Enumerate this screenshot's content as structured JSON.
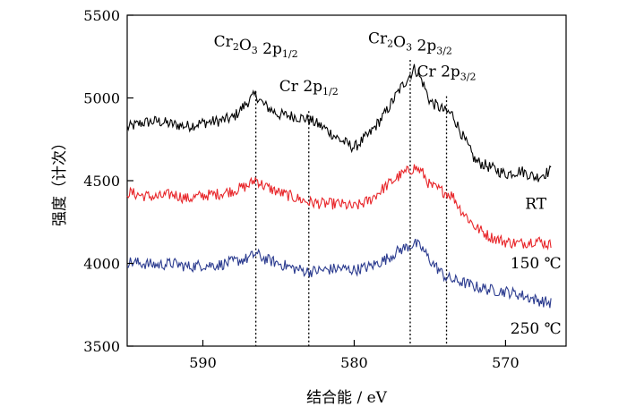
{
  "chart_data": {
    "type": "line",
    "xlabel": "结合能 / eV",
    "ylabel": "强度（计次）",
    "xlim": [
      595,
      566
    ],
    "ylim": [
      3500,
      5500
    ],
    "x_reversed": true,
    "xticks": [
      590,
      580,
      570
    ],
    "yticks": [
      3500,
      4000,
      4500,
      5000,
      5500
    ],
    "grid": false,
    "legend": "none",
    "series": [
      {
        "name": "RT",
        "color": "#000000",
        "points": [
          [
            595.0,
            4820
          ],
          [
            594.0,
            4850
          ],
          [
            593.0,
            4860
          ],
          [
            592.0,
            4840
          ],
          [
            591.0,
            4830
          ],
          [
            590.0,
            4850
          ],
          [
            589.0,
            4860
          ],
          [
            588.0,
            4880
          ],
          [
            587.0,
            4980
          ],
          [
            586.5,
            5020
          ],
          [
            586.0,
            4960
          ],
          [
            585.0,
            4900
          ],
          [
            584.0,
            4890
          ],
          [
            583.0,
            4870
          ],
          [
            582.0,
            4820
          ],
          [
            581.0,
            4750
          ],
          [
            580.0,
            4700
          ],
          [
            579.0,
            4780
          ],
          [
            578.0,
            4900
          ],
          [
            577.0,
            5050
          ],
          [
            576.0,
            5180
          ],
          [
            575.5,
            5100
          ],
          [
            575.0,
            4980
          ],
          [
            574.0,
            4920
          ],
          [
            573.5,
            4900
          ],
          [
            573.0,
            4800
          ],
          [
            572.0,
            4620
          ],
          [
            571.0,
            4580
          ],
          [
            570.0,
            4540
          ],
          [
            569.0,
            4560
          ],
          [
            568.0,
            4520
          ],
          [
            567.0,
            4560
          ]
        ]
      },
      {
        "name": "150 ℃",
        "color": "#e8262a",
        "points": [
          [
            595.0,
            4430
          ],
          [
            594.0,
            4410
          ],
          [
            593.0,
            4400
          ],
          [
            592.0,
            4420
          ],
          [
            591.0,
            4390
          ],
          [
            590.0,
            4410
          ],
          [
            589.0,
            4420
          ],
          [
            588.0,
            4440
          ],
          [
            587.0,
            4470
          ],
          [
            586.5,
            4510
          ],
          [
            586.0,
            4470
          ],
          [
            585.0,
            4430
          ],
          [
            584.0,
            4400
          ],
          [
            583.0,
            4370
          ],
          [
            582.0,
            4360
          ],
          [
            581.0,
            4360
          ],
          [
            580.0,
            4340
          ],
          [
            579.0,
            4380
          ],
          [
            578.0,
            4460
          ],
          [
            577.0,
            4530
          ],
          [
            576.0,
            4580
          ],
          [
            575.5,
            4550
          ],
          [
            575.0,
            4470
          ],
          [
            574.0,
            4430
          ],
          [
            573.5,
            4410
          ],
          [
            573.0,
            4330
          ],
          [
            572.0,
            4220
          ],
          [
            571.0,
            4160
          ],
          [
            570.0,
            4130
          ],
          [
            569.0,
            4120
          ],
          [
            568.0,
            4140
          ],
          [
            567.0,
            4110
          ]
        ]
      },
      {
        "name": "250 ℃",
        "color": "#2b3b8f",
        "points": [
          [
            595.0,
            4010
          ],
          [
            594.0,
            4000
          ],
          [
            593.0,
            3990
          ],
          [
            592.0,
            4000
          ],
          [
            591.0,
            3980
          ],
          [
            590.0,
            3990
          ],
          [
            589.0,
            3990
          ],
          [
            588.0,
            4010
          ],
          [
            587.0,
            4030
          ],
          [
            586.5,
            4060
          ],
          [
            586.0,
            4030
          ],
          [
            585.0,
            4000
          ],
          [
            584.0,
            3970
          ],
          [
            583.0,
            3950
          ],
          [
            582.0,
            3960
          ],
          [
            581.0,
            3970
          ],
          [
            580.0,
            3960
          ],
          [
            579.0,
            3980
          ],
          [
            578.0,
            4020
          ],
          [
            577.0,
            4080
          ],
          [
            576.0,
            4120
          ],
          [
            575.5,
            4090
          ],
          [
            575.0,
            4020
          ],
          [
            574.0,
            3920
          ],
          [
            573.5,
            3900
          ],
          [
            573.0,
            3890
          ],
          [
            572.0,
            3860
          ],
          [
            571.0,
            3840
          ],
          [
            570.0,
            3830
          ],
          [
            569.0,
            3810
          ],
          [
            568.0,
            3780
          ],
          [
            567.0,
            3760
          ]
        ]
      }
    ],
    "series_labels": [
      {
        "text": "RT",
        "at": [
          568.0,
          4330
        ]
      },
      {
        "text": "150 ℃",
        "at": [
          568.0,
          3970
        ]
      },
      {
        "text": "250 ℃",
        "at": [
          568.0,
          3575
        ]
      }
    ],
    "reference_lines": [
      {
        "x": 586.5,
        "y_top": 5040
      },
      {
        "x": 583.0,
        "y_top": 4920
      },
      {
        "x": 576.3,
        "y_top": 5230
      },
      {
        "x": 573.9,
        "y_top": 5010
      }
    ],
    "annotations": [
      {
        "base": "Cr",
        "sub1": "2",
        "mid": "O",
        "sub2": "3",
        "tail": " 2p",
        "sub3": "1/2",
        "at": [
          586.5,
          5310
        ]
      },
      {
        "base": "Cr",
        "sub1": "",
        "mid": "",
        "sub2": "",
        "tail": " 2p",
        "sub3": "1/2",
        "at": [
          583.0,
          5040
        ]
      },
      {
        "base": "Cr",
        "sub1": "2",
        "mid": "O",
        "sub2": "3",
        "tail": " 2p",
        "sub3": "3/2",
        "at": [
          576.3,
          5330
        ]
      },
      {
        "base": "Cr",
        "sub1": "",
        "mid": "",
        "sub2": "",
        "tail": " 2p",
        "sub3": "3/2",
        "at": [
          573.9,
          5130
        ]
      }
    ]
  }
}
